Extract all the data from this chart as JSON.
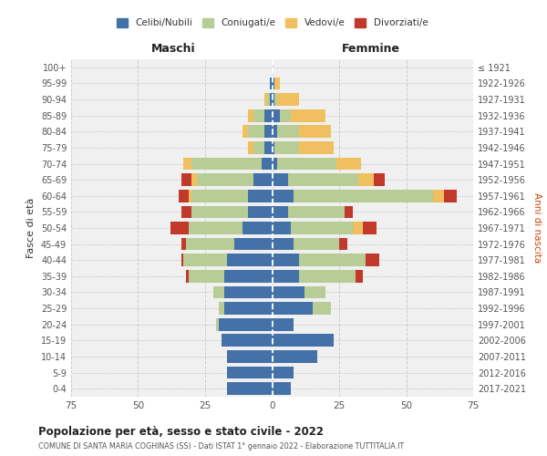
{
  "age_groups": [
    "100+",
    "95-99",
    "90-94",
    "85-89",
    "80-84",
    "75-79",
    "70-74",
    "65-69",
    "60-64",
    "55-59",
    "50-54",
    "45-49",
    "40-44",
    "35-39",
    "30-34",
    "25-29",
    "20-24",
    "15-19",
    "10-14",
    "5-9",
    "0-4"
  ],
  "birth_years": [
    "≤ 1921",
    "1922-1926",
    "1927-1931",
    "1932-1936",
    "1937-1941",
    "1942-1946",
    "1947-1951",
    "1952-1956",
    "1957-1961",
    "1962-1966",
    "1967-1971",
    "1972-1976",
    "1977-1981",
    "1982-1986",
    "1987-1991",
    "1992-1996",
    "1997-2001",
    "2002-2006",
    "2007-2011",
    "2012-2016",
    "2017-2021"
  ],
  "maschi": {
    "celibi": [
      0,
      1,
      1,
      3,
      3,
      3,
      4,
      7,
      9,
      9,
      11,
      14,
      17,
      18,
      18,
      18,
      20,
      19,
      17,
      17,
      17
    ],
    "coniugati": [
      0,
      0,
      1,
      4,
      6,
      4,
      26,
      21,
      21,
      21,
      20,
      18,
      16,
      13,
      4,
      2,
      1,
      0,
      0,
      0,
      0
    ],
    "vedovi": [
      0,
      0,
      1,
      2,
      2,
      2,
      3,
      2,
      1,
      0,
      0,
      0,
      0,
      0,
      0,
      0,
      0,
      0,
      0,
      0,
      0
    ],
    "divorziati": [
      0,
      0,
      0,
      0,
      0,
      0,
      0,
      4,
      4,
      4,
      7,
      2,
      1,
      1,
      0,
      0,
      0,
      0,
      0,
      0,
      0
    ]
  },
  "femmine": {
    "nubili": [
      0,
      1,
      1,
      3,
      2,
      1,
      2,
      6,
      8,
      6,
      7,
      8,
      10,
      10,
      12,
      15,
      8,
      23,
      17,
      8,
      7
    ],
    "coniugate": [
      0,
      0,
      1,
      4,
      8,
      9,
      22,
      26,
      52,
      21,
      23,
      17,
      25,
      21,
      8,
      7,
      0,
      0,
      0,
      0,
      0
    ],
    "vedove": [
      0,
      2,
      8,
      13,
      12,
      13,
      9,
      6,
      4,
      0,
      4,
      0,
      0,
      0,
      0,
      0,
      0,
      0,
      0,
      0,
      0
    ],
    "divorziate": [
      0,
      0,
      0,
      0,
      0,
      0,
      0,
      4,
      5,
      3,
      5,
      3,
      5,
      3,
      0,
      0,
      0,
      0,
      0,
      0,
      0
    ]
  },
  "colors": {
    "celibi": "#4472A8",
    "coniugati": "#B8CC96",
    "vedovi": "#F0C060",
    "divorziati": "#C0392B"
  },
  "legend_labels": [
    "Celibi/Nubili",
    "Coniugati/e",
    "Vedovi/e",
    "Divorziati/e"
  ],
  "title": "Popolazione per età, sesso e stato civile - 2022",
  "subtitle": "COMUNE DI SANTA MARIA COGHINAS (SS) - Dati ISTAT 1° gennaio 2022 - Elaborazione TUTTITALIA.IT",
  "xlabel_left": "Maschi",
  "xlabel_right": "Femmine",
  "ylabel_left": "Fasce di età",
  "ylabel_right": "Anni di nascita",
  "xlim": 75,
  "background_color": "#f0f0f0"
}
